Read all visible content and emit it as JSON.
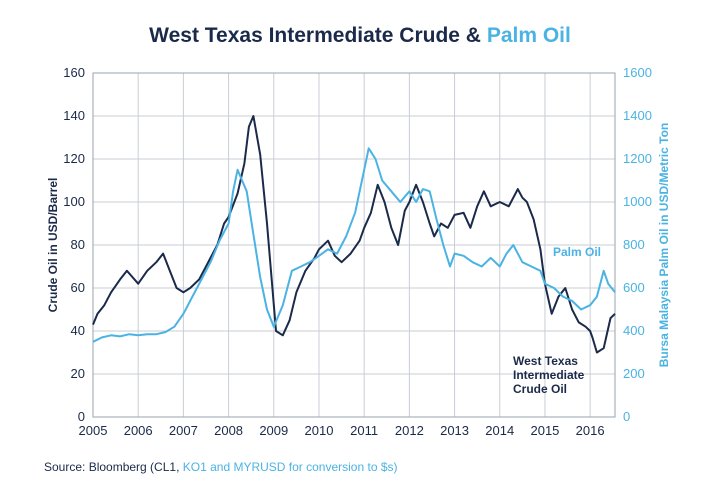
{
  "chart_data": {
    "type": "line",
    "title": "West Texas Intermediate Crude &",
    "title_highlight": "Palm Oil",
    "xlabel": "",
    "x_ticks": [
      "2005",
      "2006",
      "2007",
      "2008",
      "2009",
      "2010",
      "2011",
      "2012",
      "2013",
      "2014",
      "2015",
      "2016"
    ],
    "xlim": [
      2005,
      2016.55
    ],
    "ylabel_left": "Crude Oil in USD/Barrel",
    "ylim_left": [
      0,
      160
    ],
    "y_ticks_left": [
      "0",
      "20",
      "40",
      "60",
      "80",
      "100",
      "120",
      "140",
      "160"
    ],
    "ylabel_right": "Bursa Malaysia Palm Oil in USD/Metric Ton",
    "ylim_right": [
      0,
      1600
    ],
    "y_ticks_right": [
      "0",
      "200",
      "400",
      "600",
      "800",
      "1000",
      "1200",
      "1400",
      "1600"
    ],
    "grid": true,
    "series": [
      {
        "name": "West Texas Intermediate Crude Oil",
        "axis": "left",
        "color": "#1b2a4a",
        "label_lines": [
          "West Texas",
          "Intermediate",
          "Crude Oil"
        ],
        "x": [
          2005.0,
          2005.1,
          2005.25,
          2005.4,
          2005.6,
          2005.75,
          2006.0,
          2006.2,
          2006.4,
          2006.55,
          2006.7,
          2006.85,
          2007.0,
          2007.15,
          2007.35,
          2007.5,
          2007.6,
          2007.75,
          2007.9,
          2008.0,
          2008.2,
          2008.35,
          2008.45,
          2008.55,
          2008.7,
          2008.85,
          2008.95,
          2009.05,
          2009.2,
          2009.35,
          2009.5,
          2009.7,
          2009.9,
          2010.0,
          2010.2,
          2010.35,
          2010.5,
          2010.7,
          2010.9,
          2011.0,
          2011.15,
          2011.3,
          2011.45,
          2011.6,
          2011.75,
          2011.9,
          2012.0,
          2012.15,
          2012.3,
          2012.45,
          2012.55,
          2012.7,
          2012.85,
          2013.0,
          2013.2,
          2013.35,
          2013.5,
          2013.65,
          2013.8,
          2014.0,
          2014.2,
          2014.4,
          2014.5,
          2014.6,
          2014.75,
          2014.9,
          2015.0,
          2015.15,
          2015.3,
          2015.45,
          2015.6,
          2015.75,
          2015.9,
          2016.0,
          2016.05,
          2016.15,
          2016.3,
          2016.45,
          2016.55
        ],
        "values": [
          43,
          48,
          52,
          58,
          64,
          68,
          62,
          68,
          72,
          76,
          68,
          60,
          58,
          60,
          64,
          70,
          74,
          80,
          90,
          93,
          104,
          118,
          135,
          140,
          122,
          90,
          65,
          40,
          38,
          45,
          58,
          68,
          74,
          78,
          82,
          75,
          72,
          76,
          82,
          88,
          95,
          108,
          100,
          88,
          80,
          96,
          100,
          108,
          100,
          90,
          84,
          90,
          88,
          94,
          95,
          88,
          98,
          105,
          98,
          100,
          98,
          106,
          102,
          100,
          92,
          78,
          62,
          48,
          56,
          60,
          50,
          44,
          42,
          40,
          37,
          30,
          32,
          46,
          48
        ]
      },
      {
        "name": "Palm Oil",
        "axis": "right",
        "color": "#4ab3e3",
        "x": [
          2005.0,
          2005.2,
          2005.4,
          2005.6,
          2005.8,
          2006.0,
          2006.2,
          2006.4,
          2006.6,
          2006.8,
          2007.0,
          2007.2,
          2007.4,
          2007.6,
          2007.8,
          2008.0,
          2008.1,
          2008.2,
          2008.3,
          2008.4,
          2008.55,
          2008.7,
          2008.85,
          2009.0,
          2009.2,
          2009.4,
          2009.6,
          2009.8,
          2010.0,
          2010.2,
          2010.4,
          2010.6,
          2010.8,
          2011.0,
          2011.1,
          2011.25,
          2011.4,
          2011.6,
          2011.8,
          2012.0,
          2012.15,
          2012.3,
          2012.45,
          2012.6,
          2012.75,
          2012.9,
          2013.0,
          2013.2,
          2013.4,
          2013.6,
          2013.8,
          2014.0,
          2014.15,
          2014.3,
          2014.5,
          2014.7,
          2014.9,
          2015.0,
          2015.2,
          2015.4,
          2015.6,
          2015.8,
          2016.0,
          2016.15,
          2016.3,
          2016.4,
          2016.55
        ],
        "values": [
          350,
          370,
          380,
          375,
          385,
          380,
          385,
          385,
          395,
          420,
          480,
          560,
          640,
          720,
          820,
          900,
          1050,
          1150,
          1100,
          1050,
          850,
          650,
          500,
          420,
          520,
          680,
          700,
          720,
          750,
          780,
          760,
          840,
          950,
          1150,
          1250,
          1200,
          1100,
          1050,
          1000,
          1050,
          1000,
          1060,
          1050,
          920,
          800,
          700,
          760,
          750,
          720,
          700,
          740,
          700,
          760,
          800,
          720,
          700,
          680,
          620,
          600,
          560,
          540,
          500,
          520,
          560,
          680,
          620,
          580
        ]
      }
    ]
  },
  "source": {
    "prefix": "Source: Bloomberg (CL1,",
    "highlight": "KO1 and MYRUSD for conversion to $s)"
  }
}
